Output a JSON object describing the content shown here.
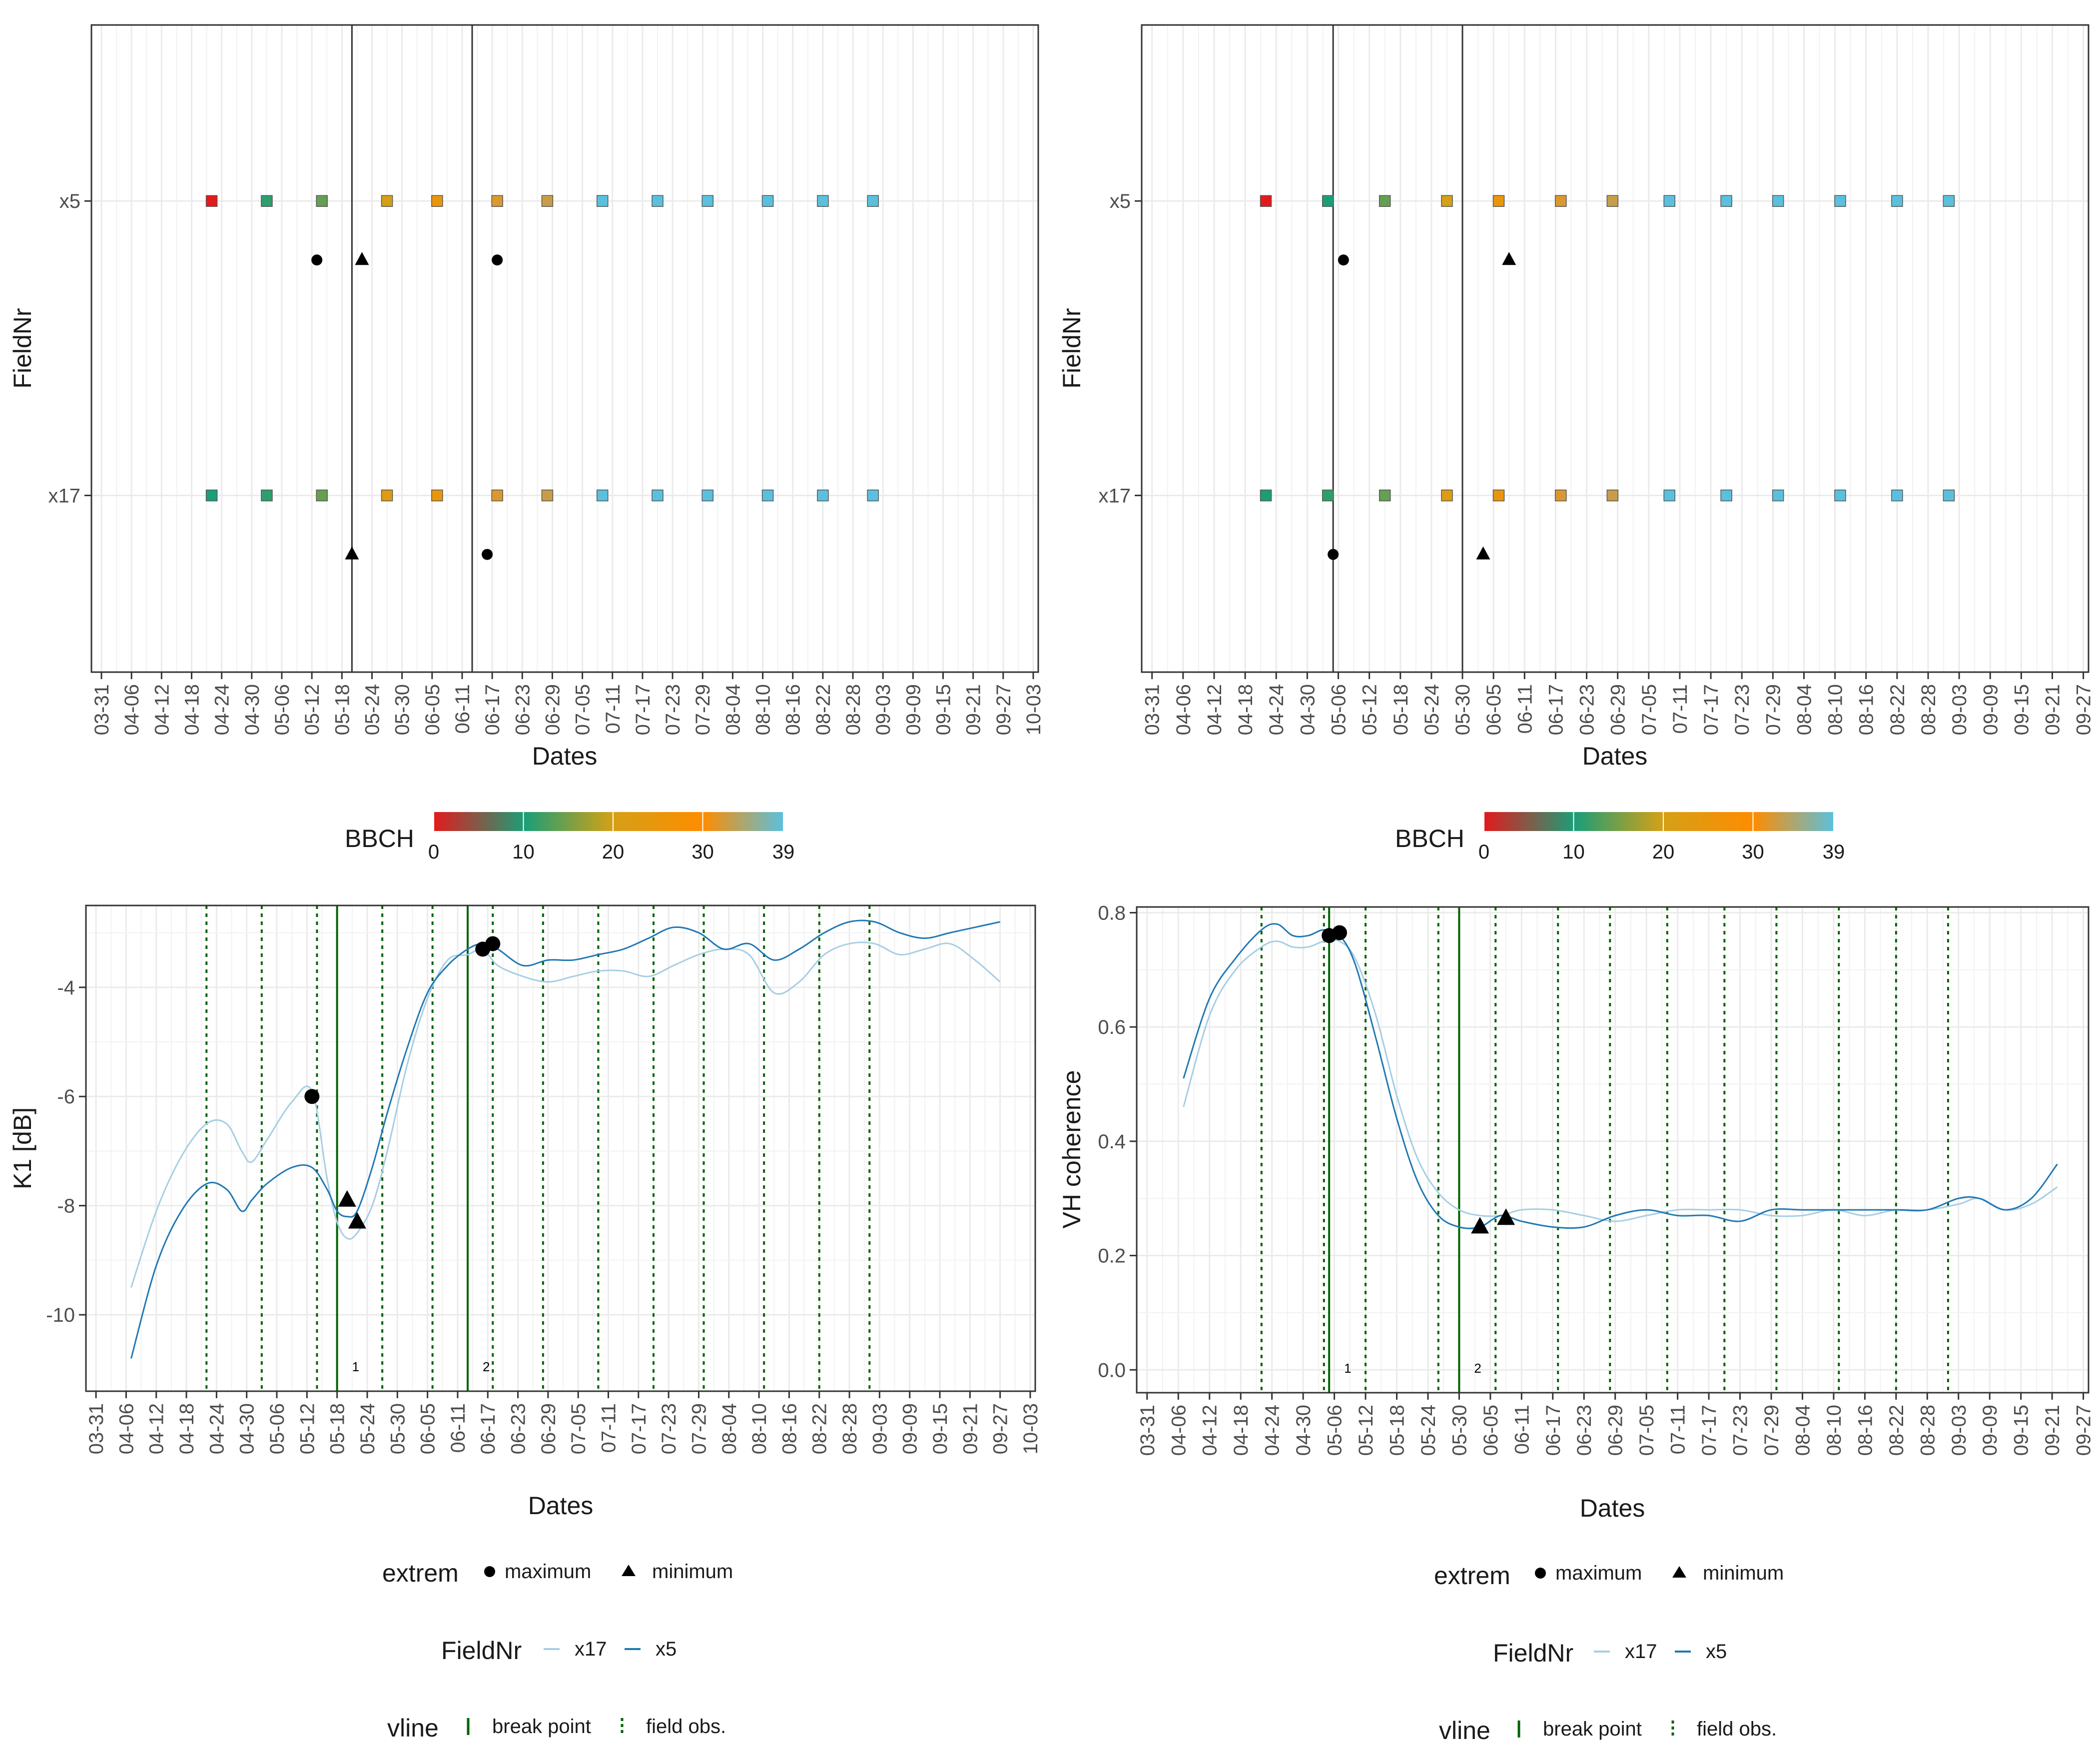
{
  "colors": {
    "grid": "#ebebeb",
    "panel_border": "#333333",
    "axis_text": "#4d4d4d",
    "x17": "#a6cee3",
    "x5": "#1f78b4",
    "break_point": "#006400",
    "field_obs": "#006400",
    "bbch_gradient": [
      "#e31a1c",
      "#1b9e77",
      "#d4a017",
      "#ff8c00",
      "#5bc0de"
    ]
  },
  "legends": {
    "bbch": {
      "title": "BBCH",
      "breaks": [
        "0",
        "10",
        "20",
        "30",
        "39"
      ]
    },
    "extrem": {
      "title": "extrem",
      "items": [
        "maximum",
        "minimum"
      ]
    },
    "fieldnr": {
      "title": "FieldNr",
      "items": [
        "x17",
        "x5"
      ]
    },
    "vline": {
      "title": "vline",
      "items": [
        "break point",
        "field obs."
      ]
    }
  },
  "chart_data": [
    {
      "id": "tl",
      "type": "scatter",
      "title": "",
      "xlabel": "Dates",
      "ylabel": "FieldNr",
      "xdomain": [
        -2,
        187
      ],
      "ticks": [
        "03-31",
        "04-06",
        "04-12",
        "04-18",
        "04-24",
        "04-30",
        "05-06",
        "05-12",
        "05-18",
        "05-24",
        "05-30",
        "06-05",
        "06-11",
        "06-17",
        "06-23",
        "06-29",
        "07-05",
        "07-11",
        "07-17",
        "07-23",
        "07-29",
        "08-04",
        "08-10",
        "08-16",
        "08-22",
        "08-28",
        "09-03",
        "09-09",
        "09-15",
        "09-21",
        "09-27",
        "10-03"
      ],
      "tick_start_day": 0,
      "tick_step_days": 6,
      "categories": [
        "x5",
        "x17"
      ],
      "breaks": [
        50,
        74
      ],
      "bbch_obs": [
        {
          "field": "x5",
          "day": 22,
          "bbch": 0
        },
        {
          "field": "x5",
          "day": 33,
          "bbch": 11
        },
        {
          "field": "x5",
          "day": 44,
          "bbch": 14
        },
        {
          "field": "x5",
          "day": 57,
          "bbch": 20
        },
        {
          "field": "x5",
          "day": 67,
          "bbch": 25
        },
        {
          "field": "x5",
          "day": 79,
          "bbch": 32
        },
        {
          "field": "x5",
          "day": 89,
          "bbch": 33
        },
        {
          "field": "x5",
          "day": 100,
          "bbch": 39
        },
        {
          "field": "x5",
          "day": 111,
          "bbch": 39
        },
        {
          "field": "x5",
          "day": 121,
          "bbch": 39
        },
        {
          "field": "x5",
          "day": 133,
          "bbch": 39
        },
        {
          "field": "x5",
          "day": 144,
          "bbch": 39
        },
        {
          "field": "x5",
          "day": 154,
          "bbch": 39
        },
        {
          "field": "x17",
          "day": 22,
          "bbch": 10
        },
        {
          "field": "x17",
          "day": 33,
          "bbch": 11
        },
        {
          "field": "x17",
          "day": 44,
          "bbch": 14
        },
        {
          "field": "x17",
          "day": 57,
          "bbch": 22
        },
        {
          "field": "x17",
          "day": 67,
          "bbch": 25
        },
        {
          "field": "x17",
          "day": 79,
          "bbch": 32
        },
        {
          "field": "x17",
          "day": 89,
          "bbch": 33
        },
        {
          "field": "x17",
          "day": 100,
          "bbch": 39
        },
        {
          "field": "x17",
          "day": 111,
          "bbch": 39
        },
        {
          "field": "x17",
          "day": 121,
          "bbch": 39
        },
        {
          "field": "x17",
          "day": 133,
          "bbch": 39
        },
        {
          "field": "x17",
          "day": 144,
          "bbch": 39
        },
        {
          "field": "x17",
          "day": 154,
          "bbch": 39
        }
      ],
      "extremes": [
        {
          "field": "x5",
          "day": 43,
          "type": "maximum"
        },
        {
          "field": "x5",
          "day": 52,
          "type": "minimum"
        },
        {
          "field": "x5",
          "day": 79,
          "type": "maximum"
        },
        {
          "field": "x17",
          "day": 50,
          "type": "minimum"
        },
        {
          "field": "x17",
          "day": 77,
          "type": "maximum"
        }
      ]
    },
    {
      "id": "tr",
      "type": "scatter",
      "title": "",
      "xlabel": "Dates",
      "ylabel": "FieldNr",
      "xdomain": [
        -2,
        181
      ],
      "ticks": [
        "03-31",
        "04-06",
        "04-12",
        "04-18",
        "04-24",
        "04-30",
        "05-06",
        "05-12",
        "05-18",
        "05-24",
        "05-30",
        "06-05",
        "06-11",
        "06-17",
        "06-23",
        "06-29",
        "07-05",
        "07-11",
        "07-17",
        "07-23",
        "07-29",
        "08-04",
        "08-10",
        "08-16",
        "08-22",
        "08-28",
        "09-03",
        "09-09",
        "09-15",
        "09-21",
        "09-27"
      ],
      "tick_start_day": 0,
      "tick_step_days": 6,
      "categories": [
        "x5",
        "x17"
      ],
      "breaks": [
        35,
        60
      ],
      "bbch_obs": [
        {
          "field": "x5",
          "day": 22,
          "bbch": 0
        },
        {
          "field": "x5",
          "day": 34,
          "bbch": 10
        },
        {
          "field": "x5",
          "day": 45,
          "bbch": 14
        },
        {
          "field": "x5",
          "day": 57,
          "bbch": 20
        },
        {
          "field": "x5",
          "day": 67,
          "bbch": 25
        },
        {
          "field": "x5",
          "day": 79,
          "bbch": 32
        },
        {
          "field": "x5",
          "day": 89,
          "bbch": 33
        },
        {
          "field": "x5",
          "day": 100,
          "bbch": 39
        },
        {
          "field": "x5",
          "day": 111,
          "bbch": 39
        },
        {
          "field": "x5",
          "day": 121,
          "bbch": 39
        },
        {
          "field": "x5",
          "day": 133,
          "bbch": 39
        },
        {
          "field": "x5",
          "day": 144,
          "bbch": 39
        },
        {
          "field": "x5",
          "day": 154,
          "bbch": 39
        },
        {
          "field": "x17",
          "day": 22,
          "bbch": 10
        },
        {
          "field": "x17",
          "day": 34,
          "bbch": 11
        },
        {
          "field": "x17",
          "day": 45,
          "bbch": 14
        },
        {
          "field": "x17",
          "day": 57,
          "bbch": 22
        },
        {
          "field": "x17",
          "day": 67,
          "bbch": 25
        },
        {
          "field": "x17",
          "day": 79,
          "bbch": 32
        },
        {
          "field": "x17",
          "day": 89,
          "bbch": 33
        },
        {
          "field": "x17",
          "day": 100,
          "bbch": 39
        },
        {
          "field": "x17",
          "day": 111,
          "bbch": 39
        },
        {
          "field": "x17",
          "day": 121,
          "bbch": 39
        },
        {
          "field": "x17",
          "day": 133,
          "bbch": 39
        },
        {
          "field": "x17",
          "day": 144,
          "bbch": 39
        },
        {
          "field": "x17",
          "day": 154,
          "bbch": 39
        }
      ],
      "extremes": [
        {
          "field": "x5",
          "day": 37,
          "type": "maximum"
        },
        {
          "field": "x5",
          "day": 69,
          "type": "minimum"
        },
        {
          "field": "x17",
          "day": 35,
          "type": "maximum"
        },
        {
          "field": "x17",
          "day": 64,
          "type": "minimum"
        }
      ]
    },
    {
      "id": "bl",
      "type": "line",
      "title": "",
      "xlabel": "Dates",
      "ylabel": "K1 [dB]",
      "xdomain": [
        -2,
        187
      ],
      "ylim": [
        -11.4,
        -2.5
      ],
      "yticks": [
        -10,
        -8,
        -6,
        -4
      ],
      "ticks": [
        "03-31",
        "04-06",
        "04-12",
        "04-18",
        "04-24",
        "04-30",
        "05-06",
        "05-12",
        "05-18",
        "05-24",
        "05-30",
        "06-05",
        "06-11",
        "06-17",
        "06-23",
        "06-29",
        "07-05",
        "07-11",
        "07-17",
        "07-23",
        "07-29",
        "08-04",
        "08-10",
        "08-16",
        "08-22",
        "08-28",
        "09-03",
        "09-09",
        "09-15",
        "09-21",
        "09-27",
        "10-03"
      ],
      "tick_start_day": 0,
      "tick_step_days": 6,
      "breaks": [
        48,
        74
      ],
      "break_labels": [
        "1",
        "2"
      ],
      "field_obs": [
        22,
        33,
        44,
        57,
        67,
        79,
        89,
        100,
        111,
        121,
        133,
        144,
        154
      ],
      "series": [
        {
          "name": "x17",
          "x": [
            7,
            12,
            17,
            22,
            26,
            29,
            31,
            34,
            39,
            43,
            46,
            48,
            50,
            52,
            55,
            58,
            62,
            66,
            70,
            74,
            77,
            80,
            85,
            90,
            95,
            100,
            105,
            110,
            115,
            120,
            125,
            130,
            135,
            140,
            145,
            150,
            155,
            160,
            165,
            170,
            175,
            180
          ],
          "y": [
            -9.5,
            -8.1,
            -7.1,
            -6.5,
            -6.5,
            -7.0,
            -7.2,
            -6.8,
            -6.1,
            -5.9,
            -7.5,
            -8.3,
            -8.6,
            -8.5,
            -8.0,
            -7.0,
            -5.4,
            -4.2,
            -3.5,
            -3.4,
            -3.3,
            -3.6,
            -3.8,
            -3.9,
            -3.8,
            -3.7,
            -3.7,
            -3.8,
            -3.6,
            -3.4,
            -3.3,
            -3.4,
            -4.1,
            -3.9,
            -3.4,
            -3.2,
            -3.2,
            -3.4,
            -3.3,
            -3.2,
            -3.5,
            -3.9
          ]
        },
        {
          "name": "x5",
          "x": [
            7,
            12,
            17,
            22,
            26,
            29,
            31,
            34,
            39,
            43,
            46,
            48,
            50,
            52,
            55,
            58,
            62,
            66,
            70,
            74,
            77,
            80,
            85,
            90,
            95,
            100,
            105,
            110,
            115,
            120,
            125,
            130,
            135,
            140,
            145,
            150,
            155,
            160,
            165,
            170,
            175,
            180
          ],
          "y": [
            -10.8,
            -9.1,
            -8.1,
            -7.6,
            -7.7,
            -8.1,
            -7.9,
            -7.6,
            -7.3,
            -7.3,
            -7.7,
            -8.1,
            -8.2,
            -8.1,
            -7.3,
            -6.3,
            -5.1,
            -4.1,
            -3.6,
            -3.3,
            -3.2,
            -3.3,
            -3.6,
            -3.5,
            -3.5,
            -3.4,
            -3.3,
            -3.1,
            -2.9,
            -3.0,
            -3.3,
            -3.2,
            -3.5,
            -3.3,
            -3.0,
            -2.8,
            -2.8,
            -3.0,
            -3.1,
            -3.0,
            -2.9,
            -2.8
          ]
        }
      ],
      "extremes": [
        {
          "day": 43,
          "value": -6.0,
          "type": "maximum"
        },
        {
          "day": 50,
          "value": -7.9,
          "type": "minimum"
        },
        {
          "day": 52,
          "value": -8.3,
          "type": "minimum"
        },
        {
          "day": 77,
          "value": -3.3,
          "type": "maximum"
        },
        {
          "day": 79,
          "value": -3.2,
          "type": "maximum"
        }
      ]
    },
    {
      "id": "br",
      "type": "line",
      "title": "",
      "xlabel": "Dates",
      "ylabel": "VH coherence",
      "xdomain": [
        -2,
        181
      ],
      "ylim": [
        -0.04,
        0.81
      ],
      "yticks": [
        0.0,
        0.2,
        0.4,
        0.6,
        0.8
      ],
      "ticks": [
        "03-31",
        "04-06",
        "04-12",
        "04-18",
        "04-24",
        "04-30",
        "05-06",
        "05-12",
        "05-18",
        "05-24",
        "05-30",
        "06-05",
        "06-11",
        "06-17",
        "06-23",
        "06-29",
        "07-05",
        "07-11",
        "07-17",
        "07-23",
        "07-29",
        "08-04",
        "08-10",
        "08-16",
        "08-22",
        "08-28",
        "09-03",
        "09-09",
        "09-15",
        "09-21",
        "09-27"
      ],
      "tick_start_day": 0,
      "tick_step_days": 6,
      "breaks": [
        35,
        60
      ],
      "break_labels": [
        "1",
        "2"
      ],
      "field_obs": [
        22,
        34,
        42,
        56,
        67,
        79,
        89,
        100,
        111,
        121,
        133,
        144,
        154
      ],
      "series": [
        {
          "name": "x17",
          "x": [
            7,
            12,
            17,
            22,
            25,
            28,
            31,
            34,
            37,
            40,
            44,
            48,
            52,
            56,
            60,
            64,
            68,
            72,
            78,
            84,
            90,
            96,
            102,
            108,
            114,
            120,
            126,
            132,
            138,
            144,
            150,
            156,
            160,
            165,
            170,
            175
          ],
          "y": [
            0.46,
            0.62,
            0.7,
            0.74,
            0.75,
            0.74,
            0.74,
            0.75,
            0.75,
            0.72,
            0.62,
            0.48,
            0.37,
            0.31,
            0.28,
            0.27,
            0.27,
            0.28,
            0.28,
            0.27,
            0.26,
            0.27,
            0.28,
            0.28,
            0.28,
            0.27,
            0.27,
            0.28,
            0.27,
            0.28,
            0.28,
            0.29,
            0.3,
            0.28,
            0.29,
            0.32
          ]
        },
        {
          "name": "x5",
          "x": [
            7,
            12,
            17,
            22,
            25,
            28,
            31,
            34,
            37,
            40,
            44,
            48,
            52,
            56,
            60,
            64,
            68,
            72,
            78,
            84,
            90,
            96,
            102,
            108,
            114,
            120,
            126,
            132,
            138,
            144,
            150,
            156,
            160,
            165,
            170,
            175
          ],
          "y": [
            0.51,
            0.65,
            0.72,
            0.77,
            0.78,
            0.76,
            0.76,
            0.77,
            0.76,
            0.71,
            0.58,
            0.44,
            0.33,
            0.27,
            0.25,
            0.25,
            0.27,
            0.26,
            0.25,
            0.25,
            0.27,
            0.28,
            0.27,
            0.27,
            0.26,
            0.28,
            0.28,
            0.28,
            0.28,
            0.28,
            0.28,
            0.3,
            0.3,
            0.28,
            0.3,
            0.36
          ]
        }
      ],
      "extremes": [
        {
          "day": 35,
          "value": 0.76,
          "type": "maximum"
        },
        {
          "day": 37,
          "value": 0.765,
          "type": "maximum"
        },
        {
          "day": 64,
          "value": 0.25,
          "type": "minimum"
        },
        {
          "day": 69,
          "value": 0.265,
          "type": "minimum"
        }
      ]
    }
  ]
}
